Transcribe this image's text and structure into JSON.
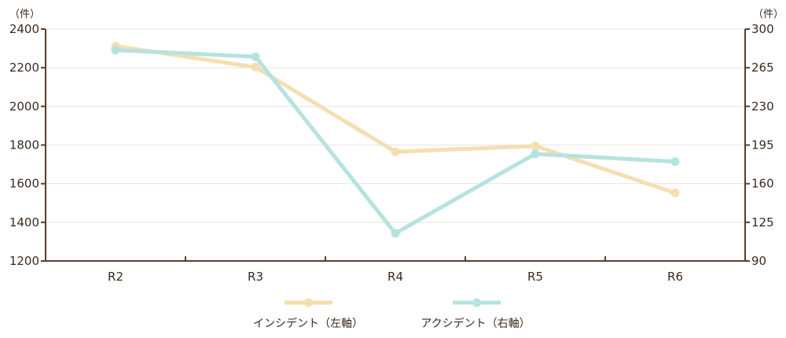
{
  "chart_data": {
    "type": "line",
    "categories": [
      "R2",
      "R3",
      "R4",
      "R5",
      "R6"
    ],
    "y_left": {
      "unit": "（件）",
      "ticks": [
        "2400",
        "2200",
        "2000",
        "1800",
        "1600",
        "1400",
        "1200"
      ],
      "ylim": [
        1200,
        2400
      ]
    },
    "y_right": {
      "unit": "（件）",
      "ticks": [
        "300",
        "265",
        "230",
        "195",
        "160",
        "125",
        "90"
      ],
      "ylim": [
        90,
        300
      ]
    },
    "series": [
      {
        "name": "インシデント（左軸）",
        "axis": "left",
        "color": "#f5deb0",
        "values": [
          2312,
          2203,
          1765,
          1795,
          1552
        ]
      },
      {
        "name": "アクシデント（右軸）",
        "axis": "right",
        "color": "#b5e3df",
        "values": [
          281,
          275,
          115,
          187,
          180
        ]
      }
    ],
    "grid": true,
    "legend": "bottom-center"
  }
}
